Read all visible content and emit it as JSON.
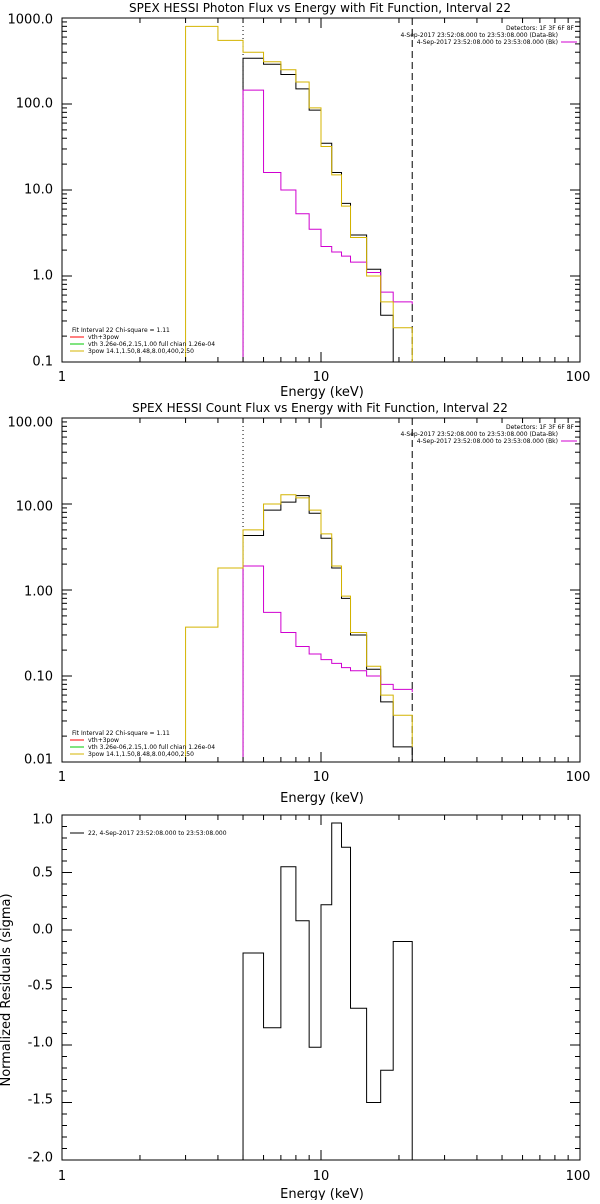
{
  "colors": {
    "data": "#000000",
    "fit_total": "#d4b400",
    "background": "#d000d0",
    "thermal": "#00c800",
    "pileup": "#ff0000"
  },
  "chart_data": [
    {
      "type": "line",
      "title": "SPEX HESSI Photon Flux vs Energy with Fit Function, Interval 22",
      "xlabel": "Energy (keV)",
      "ylabel": "",
      "x_scale": "log",
      "y_scale": "log",
      "xlim": [
        1,
        100
      ],
      "ylim": [
        0.1,
        1000
      ],
      "xticks": [
        "1",
        "10",
        "100"
      ],
      "yticks": [
        "0.1",
        "1.0",
        "10.0",
        "100.0",
        "1000.0"
      ],
      "header": [
        "Detectors: 1F 3F 6F 8F",
        "4-Sep-2017 23:52:08.000 to 23:53:08.000 (Data-Bk)",
        "4-Sep-2017 23:52:08.000 to 23:53:08.000 (Bk)"
      ],
      "legend_lines": [
        "Fit Interval 22   Chi-square = 1.11",
        "vth+3pow",
        "vth 3.26e-06,2.15,1.00  full chian 1.26e-04",
        "3pow 14.1,1.50,8.48,8.00,400,2.50"
      ],
      "vlines": {
        "dotted": 5.0,
        "dashed": 22.5
      },
      "series": [
        {
          "name": "Data-Bk",
          "color": "data",
          "edges": [
            5.0,
            6.0,
            7.0,
            8.0,
            9.0,
            10.0,
            11.0,
            12.0,
            13.0,
            15.0,
            17.0,
            19.0,
            22.5
          ],
          "values": [
            340,
            290,
            220,
            150,
            85,
            35,
            16,
            7,
            3,
            1.2,
            0.35,
            0.1
          ]
        },
        {
          "name": "Bk",
          "color": "background",
          "edges": [
            5.0,
            6.0,
            7.0,
            8.0,
            9.0,
            10.0,
            11.0,
            12.0,
            13.0,
            15.0,
            17.0,
            19.0,
            22.5
          ],
          "values": [
            145,
            16,
            10,
            5.3,
            3.5,
            2.2,
            1.9,
            1.7,
            1.45,
            1.1,
            0.65,
            0.5,
            0.47
          ]
        },
        {
          "name": "vth+3pow",
          "color": "fit_total",
          "edges": [
            3.0,
            4.0,
            5.0,
            6.0,
            7.0,
            8.0,
            9.0,
            10.0,
            11.0,
            12.0,
            13.0,
            15.0,
            17.0,
            19.0,
            22.5
          ],
          "values": [
            800,
            550,
            400,
            310,
            250,
            180,
            90,
            32,
            15,
            6.5,
            2.8,
            1.0,
            0.5,
            0.25,
            0.1
          ]
        }
      ]
    },
    {
      "type": "line",
      "title": "SPEX HESSI Count Flux vs Energy with Fit Function, Interval 22",
      "xlabel": "Energy (keV)",
      "ylabel": "",
      "x_scale": "log",
      "y_scale": "log",
      "xlim": [
        1,
        100
      ],
      "ylim": [
        0.01,
        100
      ],
      "xticks": [
        "1",
        "10",
        "100"
      ],
      "yticks": [
        "0.01",
        "0.10",
        "1.00",
        "10.00",
        "100.00"
      ],
      "header": [
        "Detectors: 1F 3F 6F 8F",
        "4-Sep-2017 23:52:08.000 to 23:53:08.000 (Data-Bk)",
        "4-Sep-2017 23:52:08.000 to 23:53:08.000 (Bk)"
      ],
      "legend_lines": [
        "Fit Interval 22   Chi-square = 1.11",
        "vth+3pow",
        "vth 3.26e-06,2.15,1.00  full chian 1.26e-04",
        "3pow 14.1,1.50,8.48,8.00,400,2.50"
      ],
      "vlines": {
        "dotted": 5.0,
        "dashed": 22.5
      },
      "series": [
        {
          "name": "Data-Bk",
          "color": "data",
          "edges": [
            5.0,
            6.0,
            7.0,
            8.0,
            9.0,
            10.0,
            11.0,
            12.0,
            13.0,
            15.0,
            17.0,
            19.0,
            22.5
          ],
          "values": [
            4.3,
            8.5,
            10.5,
            12.5,
            7.8,
            4.0,
            1.8,
            0.8,
            0.3,
            0.12,
            0.05,
            0.015
          ]
        },
        {
          "name": "Bk",
          "color": "background",
          "edges": [
            5.0,
            6.0,
            7.0,
            8.0,
            9.0,
            10.0,
            11.0,
            12.0,
            13.0,
            15.0,
            17.0,
            19.0,
            22.5
          ],
          "values": [
            1.9,
            0.55,
            0.32,
            0.22,
            0.18,
            0.155,
            0.14,
            0.125,
            0.115,
            0.1,
            0.08,
            0.07,
            0.065
          ]
        },
        {
          "name": "vth+3pow",
          "color": "fit_total",
          "edges": [
            3.0,
            4.0,
            5.0,
            6.0,
            7.0,
            8.0,
            9.0,
            10.0,
            11.0,
            12.0,
            13.0,
            15.0,
            17.0,
            19.0,
            22.5
          ],
          "values": [
            0.37,
            1.8,
            5.0,
            10.0,
            12.8,
            11.8,
            8.5,
            4.5,
            1.9,
            0.85,
            0.32,
            0.13,
            0.06,
            0.035,
            0.015
          ]
        }
      ]
    },
    {
      "type": "line",
      "title": "",
      "xlabel": "Energy (keV)",
      "ylabel": "Normalized Residuals (sigma)",
      "x_scale": "log",
      "y_scale": "linear",
      "xlim": [
        1,
        100
      ],
      "ylim": [
        -2.0,
        1.0
      ],
      "xticks": [
        "1",
        "10",
        "100"
      ],
      "yticks": [
        "-2.0",
        "-1.5",
        "-1.0",
        "-0.5",
        "0.0",
        "0.5",
        "1.0"
      ],
      "legend_lines": [
        "22,  4-Sep-2017 23:52:08.000 to 23:53:08.000"
      ],
      "series": [
        {
          "name": "22",
          "color": "data",
          "edges": [
            5.0,
            6.0,
            7.0,
            8.0,
            9.0,
            10.0,
            11.0,
            12.0,
            13.0,
            15.0,
            17.0,
            19.0,
            22.5
          ],
          "values": [
            -0.2,
            -0.85,
            0.55,
            0.08,
            -1.02,
            0.22,
            0.93,
            0.72,
            -0.68,
            -1.5,
            -1.22,
            -0.1
          ]
        }
      ]
    }
  ]
}
